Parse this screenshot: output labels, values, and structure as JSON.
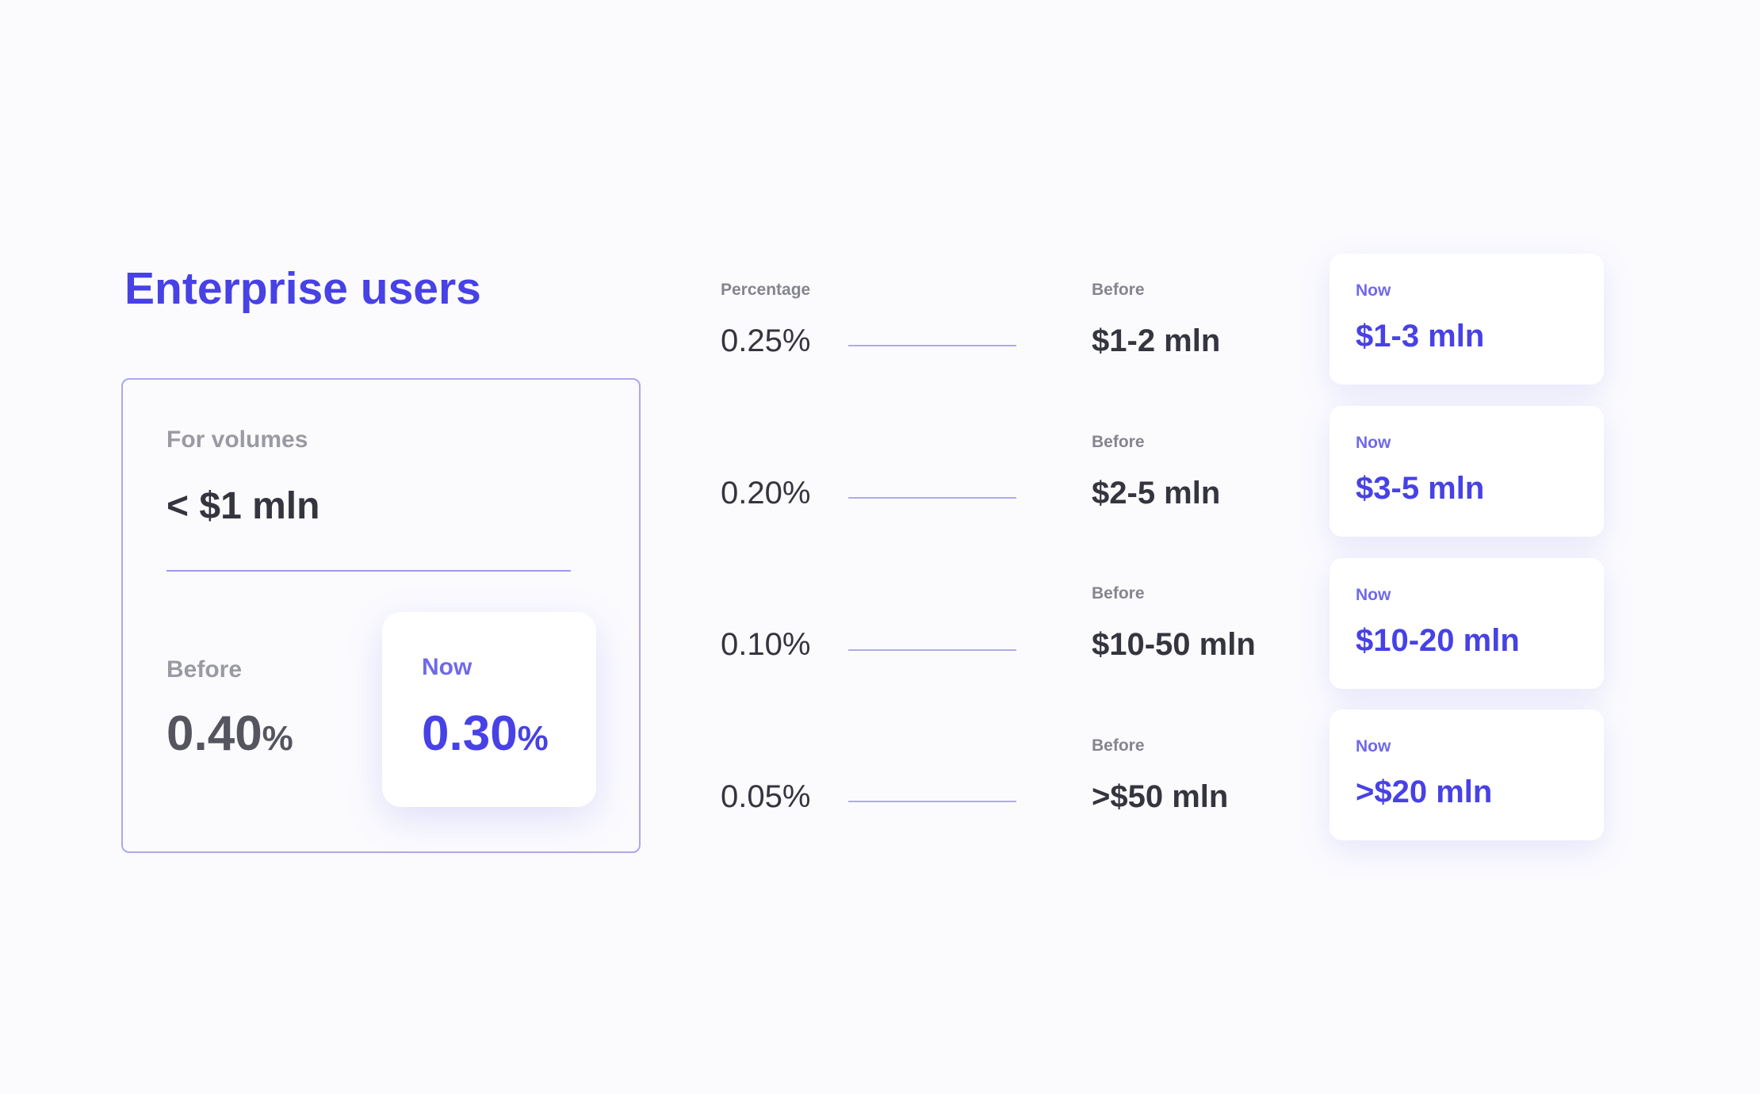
{
  "title": "Enterprise users",
  "summary": {
    "volumes_label": "For volumes",
    "volumes_value": "< $1 mln",
    "before_label": "Before",
    "before_rate": "0.40",
    "before_unit": "%",
    "now_label": "Now",
    "now_rate": "0.30",
    "now_unit": "%"
  },
  "tiers": {
    "percentage_header": "Percentage",
    "rows": [
      {
        "percentage": "0.25%",
        "before_label": "Before",
        "before": "$1-2 mln",
        "now_label": "Now",
        "now": "$1-3 mln"
      },
      {
        "percentage": "0.20%",
        "before_label": "Before",
        "before": "$2-5 mln",
        "now_label": "Now",
        "now": "$3-5 mln"
      },
      {
        "percentage": "0.10%",
        "before_label": "Before",
        "before": "$10-50 mln",
        "now_label": "Now",
        "now": "$10-20 mln"
      },
      {
        "percentage": "0.05%",
        "before_label": "Before",
        "before": ">$50 mln",
        "now_label": "Now",
        "now": ">$20 mln"
      }
    ]
  },
  "colors": {
    "accent": "#4741e6",
    "accent_light": "#7069ea",
    "text": "#35353f",
    "muted": "#9a9aa3",
    "border": "#aaa8ef",
    "background": "#fbfbfe"
  }
}
